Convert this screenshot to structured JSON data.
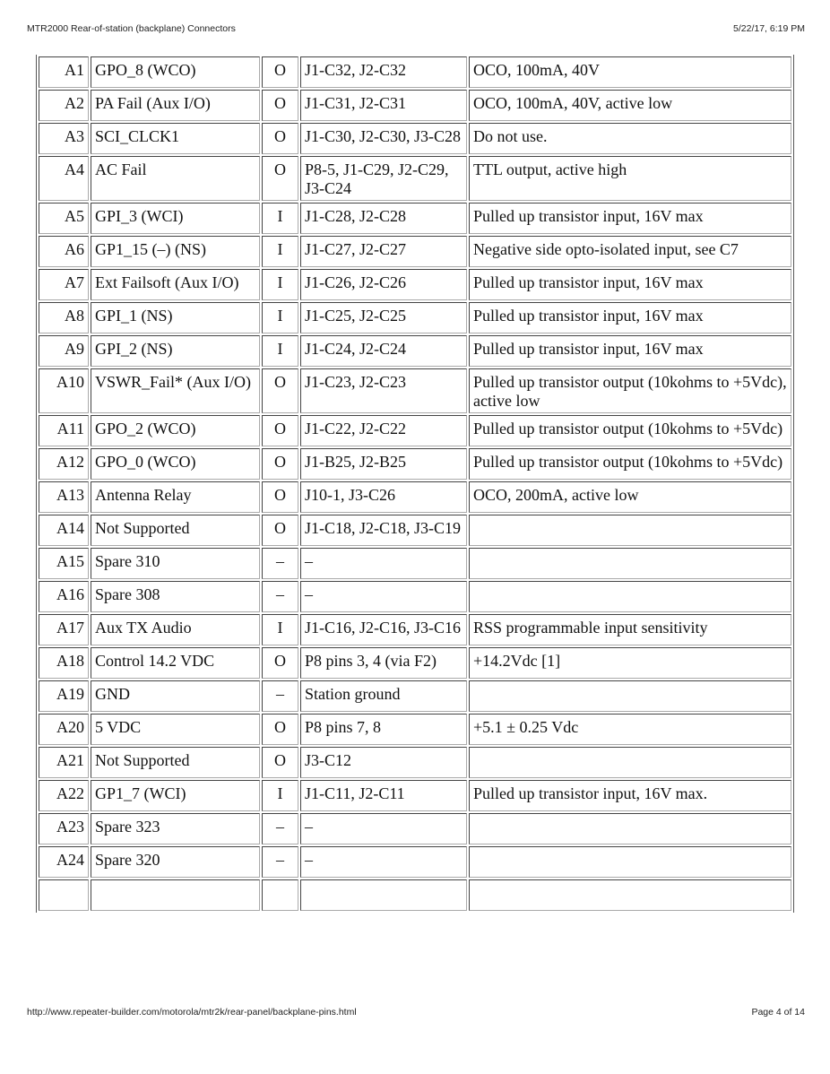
{
  "header": {
    "title": "MTR2000 Rear-of-station (backplane) Connectors",
    "datetime": "5/22/17, 6:19 PM"
  },
  "footer": {
    "url": "http://www.repeater-builder.com/motorola/mtr2k/rear-panel/backplane-pins.html",
    "page": "Page 4 of 14"
  },
  "rows": [
    {
      "pin": "A1",
      "name": "GPO_8 (WCO)",
      "dir": "O",
      "conn": "J1-C32, J2-C32",
      "desc": "OCO, 100mA, 40V"
    },
    {
      "pin": "A2",
      "name": "PA Fail (Aux I/O)",
      "dir": "O",
      "conn": "J1-C31, J2-C31",
      "desc": "OCO, 100mA, 40V, active low"
    },
    {
      "pin": "A3",
      "name": "SCI_CLCK1",
      "dir": "O",
      "conn": "J1-C30, J2-C30, J3-C28",
      "desc": "Do not use."
    },
    {
      "pin": "A4",
      "name": "AC Fail",
      "dir": "O",
      "conn": "P8-5, J1-C29, J2-C29, J3-C24",
      "desc": "TTL output, active high"
    },
    {
      "pin": "A5",
      "name": "GPI_3 (WCI)",
      "dir": "I",
      "conn": "J1-C28, J2-C28",
      "desc": "Pulled up transistor input, 16V max"
    },
    {
      "pin": "A6",
      "name": "GP1_15 (–) (NS)",
      "dir": "I",
      "conn": "J1-C27, J2-C27",
      "desc": "Negative side opto-isolated input, see C7"
    },
    {
      "pin": "A7",
      "name": "Ext Failsoft (Aux I/O)",
      "dir": "I",
      "conn": "J1-C26, J2-C26",
      "desc": "Pulled up transistor input, 16V max"
    },
    {
      "pin": "A8",
      "name": "GPI_1 (NS)",
      "dir": "I",
      "conn": "J1-C25, J2-C25",
      "desc": "Pulled up transistor input, 16V max"
    },
    {
      "pin": "A9",
      "name": "GPI_2 (NS)",
      "dir": "I",
      "conn": "J1-C24, J2-C24",
      "desc": "Pulled up transistor input, 16V max"
    },
    {
      "pin": "A10",
      "name": "VSWR_Fail* (Aux I/O)",
      "dir": "O",
      "conn": "J1-C23, J2-C23",
      "desc": "Pulled up transistor output (10kohms to +5Vdc), active low"
    },
    {
      "pin": "A11",
      "name": "GPO_2 (WCO)",
      "dir": "O",
      "conn": "J1-C22, J2-C22",
      "desc": "Pulled up transistor output (10kohms to +5Vdc)"
    },
    {
      "pin": "A12",
      "name": "GPO_0 (WCO)",
      "dir": "O",
      "conn": "J1-B25, J2-B25",
      "desc": "Pulled up transistor output (10kohms to +5Vdc)"
    },
    {
      "pin": "A13",
      "name": "Antenna Relay",
      "dir": "O",
      "conn": "J10-1, J3-C26",
      "desc": "OCO, 200mA, active low"
    },
    {
      "pin": "A14",
      "name": "Not Supported",
      "dir": "O",
      "conn": "J1-C18, J2-C18, J3-C19",
      "desc": ""
    },
    {
      "pin": "A15",
      "name": "Spare 310",
      "dir": "–",
      "conn": "–",
      "desc": ""
    },
    {
      "pin": "A16",
      "name": "Spare 308",
      "dir": "–",
      "conn": "–",
      "desc": ""
    },
    {
      "pin": "A17",
      "name": "Aux TX Audio",
      "dir": "I",
      "conn": "J1-C16, J2-C16, J3-C16",
      "desc": "RSS programmable input sensitivity"
    },
    {
      "pin": "A18",
      "name": "Control 14.2 VDC",
      "dir": "O",
      "conn": "P8 pins 3, 4 (via F2)",
      "desc": "+14.2Vdc [1]"
    },
    {
      "pin": "A19",
      "name": "GND",
      "dir": "–",
      "conn": "Station ground",
      "desc": ""
    },
    {
      "pin": "A20",
      "name": "5 VDC",
      "dir": "O",
      "conn": "P8 pins 7, 8",
      "desc": "+5.1 ± 0.25 Vdc"
    },
    {
      "pin": "A21",
      "name": "Not Supported",
      "dir": "O",
      "conn": "J3-C12",
      "desc": ""
    },
    {
      "pin": "A22",
      "name": "GP1_7 (WCI)",
      "dir": "I",
      "conn": "J1-C11, J2-C11",
      "desc": "Pulled up transistor input, 16V max."
    },
    {
      "pin": "A23",
      "name": "Spare 323",
      "dir": "–",
      "conn": "–",
      "desc": ""
    },
    {
      "pin": "A24",
      "name": "Spare 320",
      "dir": "–",
      "conn": "–",
      "desc": ""
    },
    {
      "pin": "",
      "name": "",
      "dir": "",
      "conn": "",
      "desc": ""
    }
  ]
}
